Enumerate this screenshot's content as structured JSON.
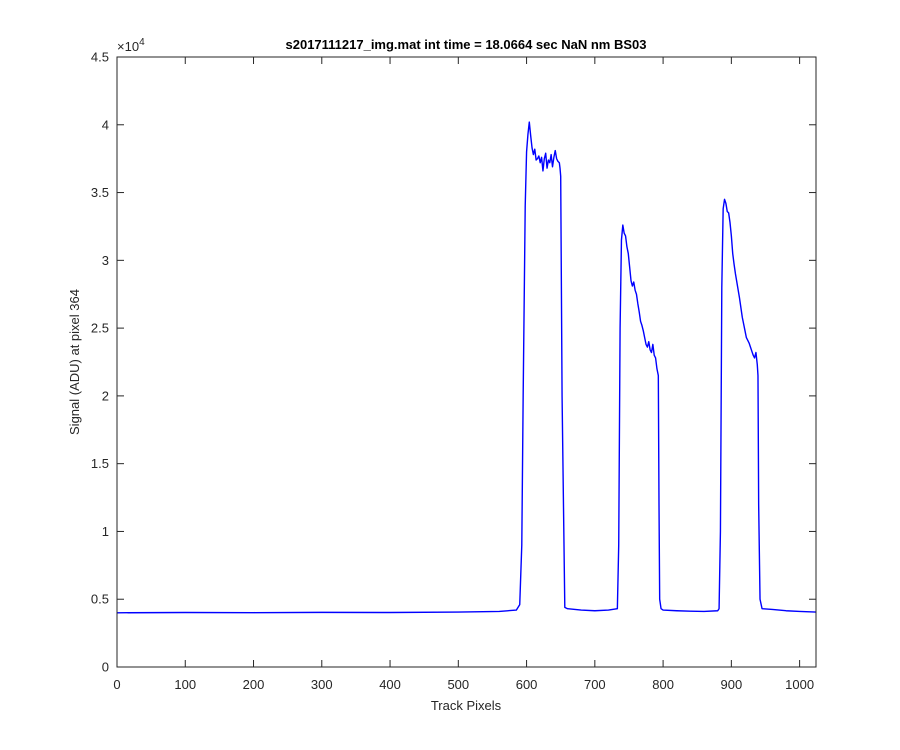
{
  "chart_data": {
    "type": "line",
    "title": "s2017111217_img.mat int time = 18.0664 sec  NaN nm BS03",
    "xlabel": "Track Pixels",
    "ylabel": "Signal (ADU) at pixel 364",
    "xlim": [
      0,
      1024
    ],
    "ylim": [
      0,
      45000
    ],
    "y_exponent_label": "×10",
    "y_exponent_power": "4",
    "x_ticks": [
      "0",
      "100",
      "200",
      "300",
      "400",
      "500",
      "600",
      "700",
      "800",
      "900",
      "1000"
    ],
    "y_ticks": [
      "0",
      "0.5",
      "1",
      "1.5",
      "2",
      "2.5",
      "3",
      "3.5",
      "4",
      "4.5"
    ],
    "grid": false,
    "line_color": "#0000ff",
    "series": [
      {
        "x": [
          0,
          100,
          200,
          300,
          400,
          500,
          560,
          585,
          590,
          593,
          595,
          598,
          600,
          602,
          604,
          606,
          608,
          610,
          612,
          614,
          616,
          618,
          620,
          622,
          624,
          626,
          628,
          630,
          632,
          634,
          636,
          638,
          640,
          642,
          644,
          646,
          648,
          649,
          650,
          652,
          656,
          660,
          680,
          700,
          720,
          733,
          735,
          737,
          739,
          741,
          743,
          745,
          747,
          749,
          751,
          753,
          755,
          757,
          759,
          761,
          763,
          765,
          767,
          769,
          771,
          773,
          775,
          777,
          779,
          781,
          783,
          785,
          787,
          789,
          791,
          793,
          794,
          795,
          797,
          800,
          820,
          840,
          860,
          880,
          882,
          884,
          886,
          888,
          890,
          892,
          894,
          896,
          898,
          900,
          902,
          904,
          906,
          908,
          910,
          912,
          914,
          916,
          918,
          920,
          922,
          924,
          926,
          928,
          930,
          932,
          934,
          936,
          938,
          939,
          940,
          942,
          945,
          960,
          980,
          1000,
          1024
        ],
        "y": [
          4000,
          4020,
          4010,
          4030,
          4020,
          4050,
          4100,
          4200,
          4600,
          9000,
          20000,
          34000,
          38000,
          39300,
          40200,
          39200,
          38300,
          37800,
          38200,
          37400,
          37500,
          37700,
          37200,
          37600,
          36600,
          37500,
          37900,
          36800,
          37400,
          37200,
          37800,
          36900,
          37600,
          38100,
          37500,
          37300,
          37200,
          36800,
          36200,
          20000,
          4400,
          4300,
          4200,
          4150,
          4200,
          4300,
          9000,
          25000,
          31500,
          32600,
          32000,
          31800,
          31000,
          30500,
          29500,
          28500,
          28100,
          28400,
          27800,
          27500,
          26800,
          26200,
          25500,
          25200,
          24800,
          24300,
          23800,
          23600,
          24000,
          23400,
          23200,
          23800,
          23000,
          22800,
          22000,
          21500,
          12000,
          5000,
          4300,
          4200,
          4150,
          4120,
          4100,
          4150,
          4300,
          10000,
          28000,
          33800,
          34500,
          34200,
          33600,
          33500,
          32800,
          31800,
          30500,
          29700,
          29000,
          28400,
          27800,
          27200,
          26500,
          25800,
          25300,
          24800,
          24300,
          24100,
          23900,
          23600,
          23300,
          23000,
          22800,
          23200,
          22300,
          21500,
          12000,
          5000,
          4300,
          4250,
          4150,
          4100,
          4050
        ]
      }
    ]
  }
}
